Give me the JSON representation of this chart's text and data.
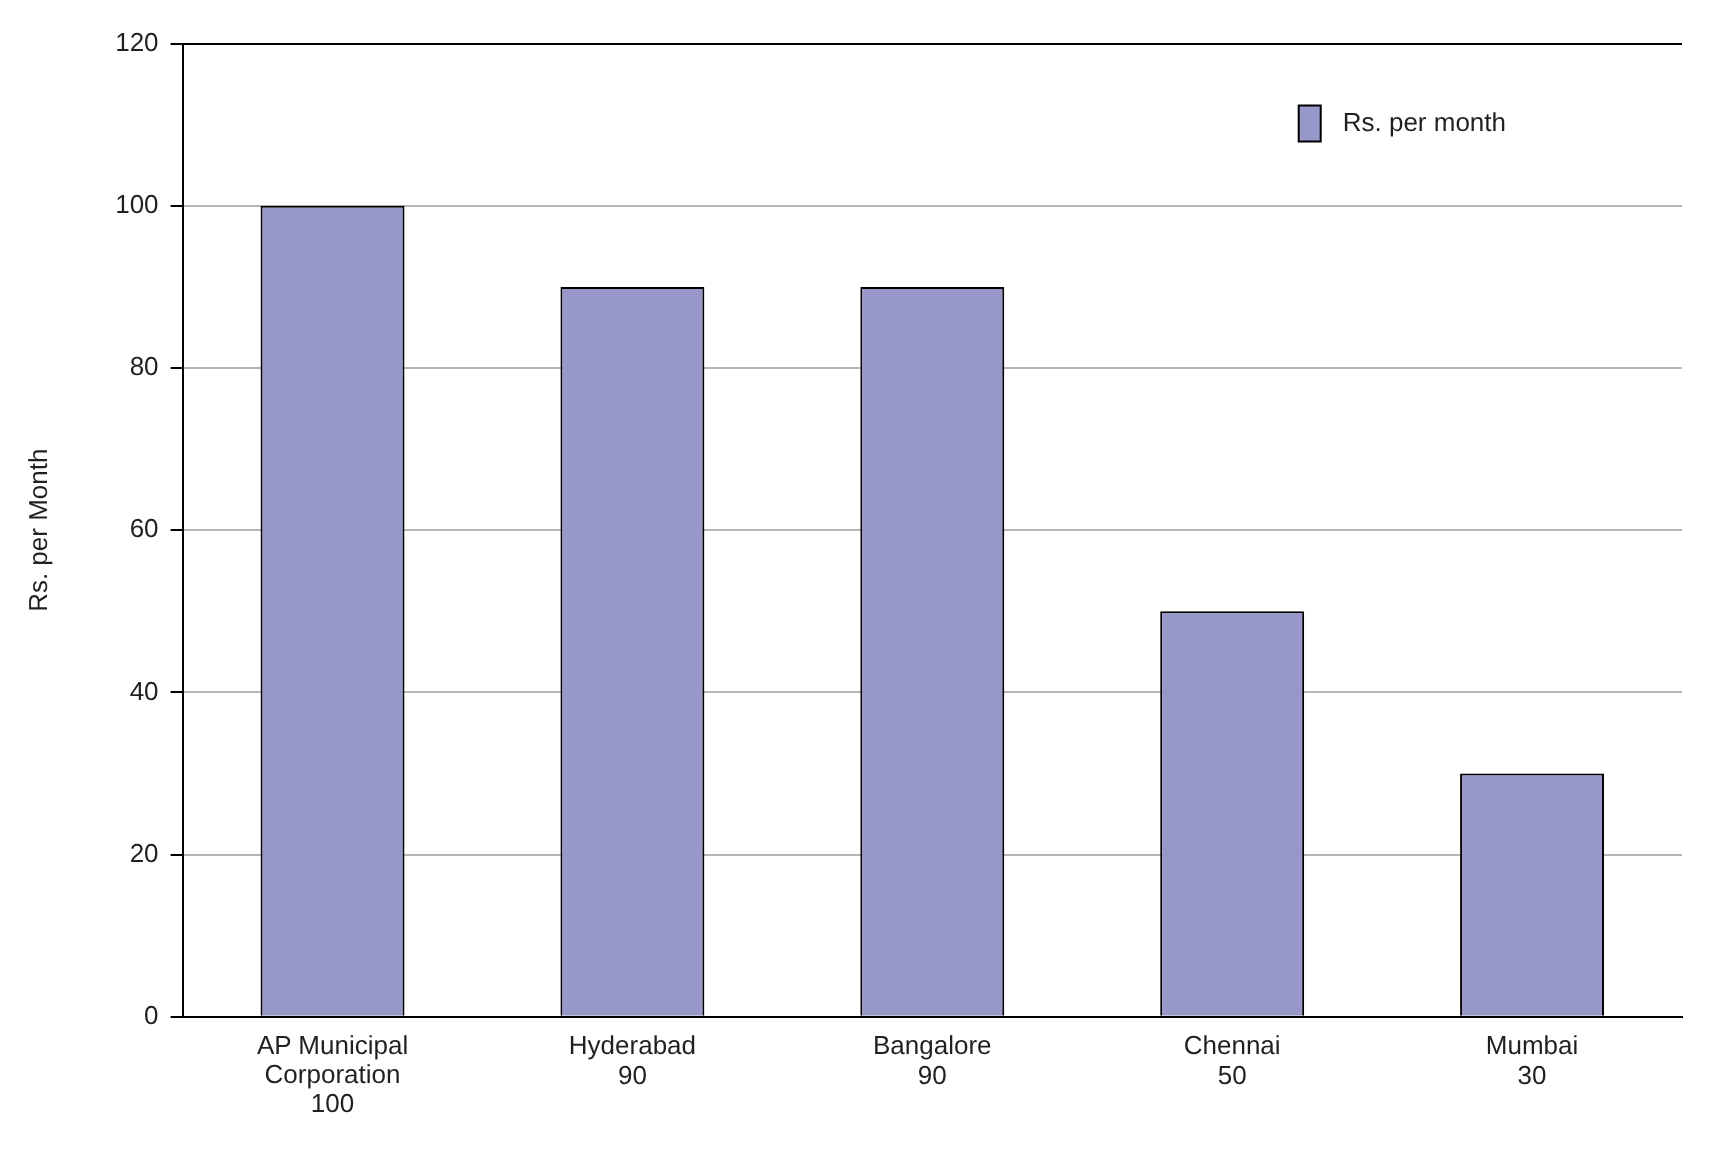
{
  "chart_data": {
    "type": "bar",
    "ylabel": "Rs. per Month",
    "categories": [
      "AP Municipal Corporation",
      "Hyderabad",
      "Bangalore",
      "Chennai",
      "Mumbai"
    ],
    "series": [
      {
        "name": "Rs. per month",
        "color": "#9797c9",
        "values": [
          100,
          90,
          90,
          50,
          30
        ]
      }
    ],
    "ylim": [
      0,
      120
    ],
    "yticks": [
      0,
      20,
      40,
      60,
      80,
      100,
      120
    ],
    "grid": "y",
    "legend": "top right",
    "data_labels": true
  }
}
